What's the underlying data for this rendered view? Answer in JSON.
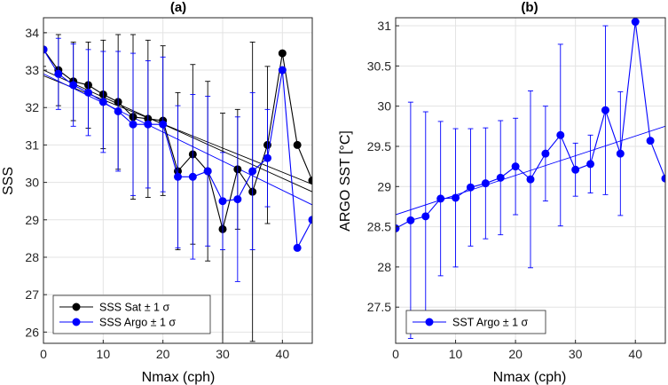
{
  "chart_data": [
    {
      "type": "line",
      "title": "(a)",
      "xlabel": "Nmax (cph)",
      "ylabel": "SSS",
      "xlim": [
        0,
        45
      ],
      "ylim": [
        25.7,
        34.4
      ],
      "xticks": [
        0,
        10,
        20,
        30,
        40
      ],
      "yticks": [
        26,
        27,
        28,
        29,
        30,
        31,
        32,
        33,
        34
      ],
      "grid": true,
      "legend_position": "bottom-left",
      "x": [
        0,
        2.5,
        5,
        7.5,
        10,
        12.5,
        15,
        17.5,
        20,
        22.5,
        25,
        27.5,
        30,
        32.5,
        35,
        37.5,
        40,
        42.5,
        45
      ],
      "series": [
        {
          "name": "SSS Sat ± 1 σ",
          "color": "#000000",
          "values": [
            33.55,
            33.0,
            32.7,
            32.6,
            32.35,
            32.15,
            31.75,
            31.7,
            31.65,
            30.3,
            30.75,
            30.3,
            28.75,
            30.35,
            29.75,
            31.0,
            33.45,
            31.0,
            30.05
          ],
          "errors": [
            0.45,
            0.95,
            1.05,
            1.15,
            1.45,
            1.8,
            2.2,
            2.1,
            2.0,
            2.1,
            2.4,
            2.4,
            3.1,
            1.6,
            4.0,
            2.1,
            0.0,
            0.0,
            0.0
          ],
          "fit": [
            33.0,
            29.75
          ]
        },
        {
          "name": "SSS Argo ± 1 σ",
          "color": "#0000ff",
          "values": [
            33.55,
            32.9,
            32.6,
            32.4,
            32.15,
            31.9,
            31.55,
            31.55,
            31.55,
            30.15,
            30.15,
            30.3,
            29.5,
            29.55,
            30.3,
            30.65,
            33.0,
            28.25,
            29.0
          ],
          "errors": [
            0.0,
            0.95,
            1.1,
            1.15,
            1.35,
            1.6,
            1.9,
            1.7,
            1.8,
            1.9,
            2.2,
            2.0,
            1.3,
            2.2,
            2.1,
            1.3,
            0.0,
            0.0,
            0.0
          ],
          "fit": [
            32.9,
            29.4
          ]
        }
      ],
      "extra_fit_line": [
        32.85,
        29.95
      ]
    },
    {
      "type": "line",
      "title": "(b)",
      "xlabel": "Nmax (cph)",
      "ylabel": "ARGO SST [°C]",
      "xlim": [
        0,
        45
      ],
      "ylim": [
        27.05,
        31.1
      ],
      "xticks": [
        0,
        10,
        20,
        30,
        40
      ],
      "yticks": [
        27.5,
        28,
        28.5,
        29,
        29.5,
        30,
        30.5,
        31
      ],
      "ytick_labels": [
        "27.5",
        "28",
        "28.5",
        "29",
        "29.5",
        "30",
        "30.5",
        "31"
      ],
      "grid": true,
      "legend_position": "bottom-left",
      "x": [
        0,
        2.5,
        5,
        7.5,
        10,
        12.5,
        15,
        17.5,
        20,
        22.5,
        25,
        27.5,
        30,
        32.5,
        35,
        37.5,
        40,
        42.5,
        45
      ],
      "series": [
        {
          "name": "SST Argo ± 1 σ",
          "color": "#0000ff",
          "values": [
            28.48,
            28.58,
            28.63,
            28.85,
            28.86,
            28.99,
            29.04,
            29.11,
            29.25,
            29.09,
            29.41,
            29.64,
            29.21,
            29.28,
            29.95,
            29.41,
            31.05,
            29.57,
            29.1
          ],
          "errors": [
            0.0,
            1.47,
            1.3,
            0.96,
            0.86,
            0.73,
            0.69,
            0.71,
            0.6,
            1.1,
            0.59,
            1.13,
            0.33,
            0.36,
            1.05,
            0.77,
            0.0,
            0.0,
            0.0
          ],
          "fit": [
            28.65,
            29.75
          ]
        }
      ]
    }
  ]
}
